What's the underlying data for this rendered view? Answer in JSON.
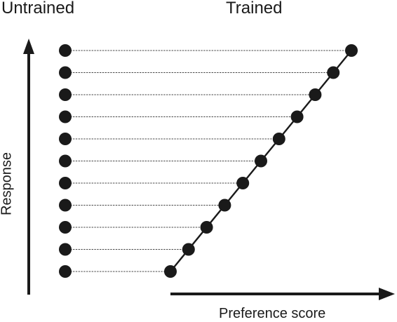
{
  "labels": {
    "untrained": "Untrained",
    "trained": "Trained",
    "x_axis": "Preference score",
    "y_axis": "Response"
  },
  "colors": {
    "ink": "#1a1a1a",
    "guide": "#444444",
    "background": "#ffffff"
  },
  "diagram": {
    "point_count": 11,
    "connector_style": "dotted",
    "trained_line": "solid diagonal"
  }
}
